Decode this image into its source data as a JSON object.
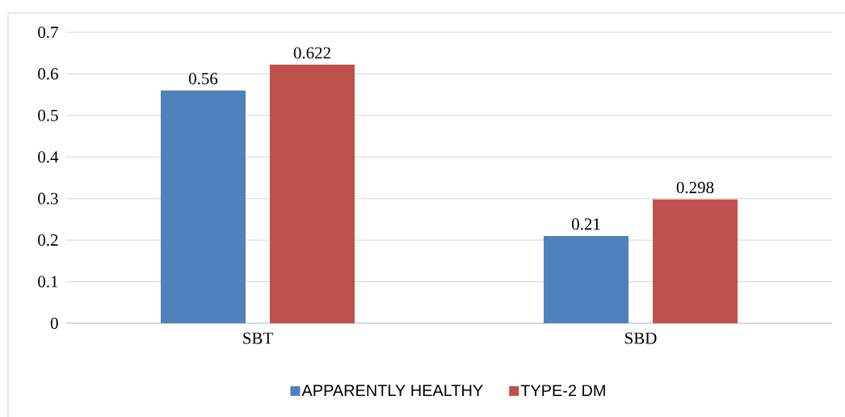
{
  "chart_data": {
    "type": "bar",
    "categories": [
      "SBT",
      "SBD"
    ],
    "series": [
      {
        "name": "APPARENTLY HEALTHY",
        "color": "#4f81bd",
        "values": [
          0.56,
          0.21
        ]
      },
      {
        "name": "TYPE-2 DM",
        "color": "#c0504d",
        "values": [
          0.622,
          0.298
        ]
      }
    ],
    "ylim": [
      0,
      0.7
    ],
    "yticks": [
      0,
      0.1,
      0.2,
      0.3,
      0.4,
      0.5,
      0.6,
      0.7
    ],
    "grid": "y",
    "legend": "bottom",
    "data_labels": true
  }
}
